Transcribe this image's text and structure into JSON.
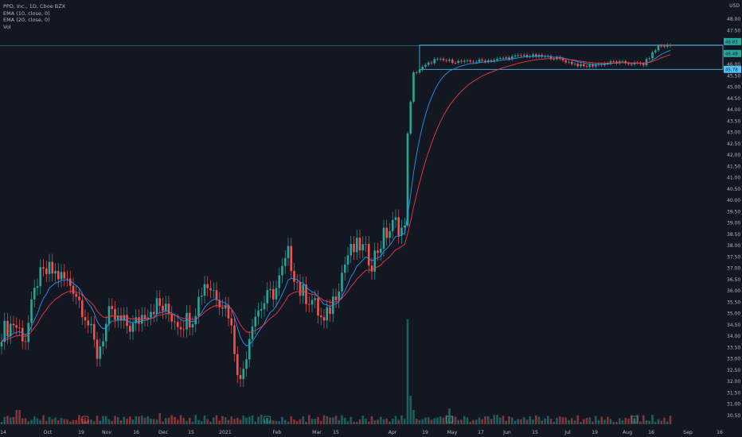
{
  "header": {
    "symbol_line": "PPD, Inc., 1D, Cboe BZX",
    "ema10": "EMA (10, close, 0)",
    "ema20": "EMA (20, close, 0)",
    "vol": "Vol",
    "currency": "USD"
  },
  "colors": {
    "background": "#131722",
    "up": "#26a69a",
    "down": "#ef5350",
    "ema10": "#2196f3",
    "ema20": "#f23645",
    "box": "#4fc3f7",
    "text": "#b2b5be"
  },
  "markers": [
    {
      "label": "E",
      "date_index": 28,
      "color": "#ef5350"
    },
    {
      "label": "E",
      "date_index": 89,
      "color": "#26a69a"
    },
    {
      "label": "E",
      "date_index": 150,
      "color": "#26a69a"
    },
    {
      "label": "E",
      "date_index": 212,
      "color": "#26a69a"
    }
  ],
  "chart_data": {
    "type": "candlestick",
    "title": "PPD, Inc., 1D, Cboe BZX",
    "ylabel": "USD",
    "ylim": [
      30.0,
      48.0
    ],
    "y_ticks": [
      "30.50",
      "31.00",
      "31.50",
      "32.00",
      "32.50",
      "33.00",
      "33.50",
      "34.00",
      "34.50",
      "35.00",
      "35.50",
      "36.00",
      "36.50",
      "37.00",
      "37.50",
      "38.00",
      "38.50",
      "39.00",
      "39.50",
      "40.00",
      "40.50",
      "41.00",
      "41.50",
      "42.00",
      "42.50",
      "43.00",
      "43.50",
      "44.00",
      "44.50",
      "45.00",
      "45.50",
      "46.00",
      "46.50",
      "47.00",
      "47.50",
      "48.00"
    ],
    "x_ticks": [
      "14",
      "Oct",
      "19",
      "Nov",
      "16",
      "Dec",
      "15",
      "2021",
      "Feb",
      "Mar",
      "15",
      "Apr",
      "19",
      "May",
      "17",
      "Jun",
      "15",
      "Jul",
      "19",
      "Aug",
      "16",
      "Sep",
      "16"
    ],
    "price_labels": [
      {
        "value": "46.83",
        "color": "#26a69a"
      },
      {
        "value": "46.48",
        "color": "#26a69a"
      },
      {
        "value": "45.78",
        "color": "#4fc3f7"
      }
    ],
    "range_box": {
      "top": 46.85,
      "bottom": 45.78,
      "from": "2021-04-19",
      "to": "2021-09-10"
    },
    "series": [
      {
        "name": "EMA (10, close, 0)",
        "color": "#2196f3"
      },
      {
        "name": "EMA (20, close, 0)",
        "color": "#f23645"
      },
      {
        "name": "Vol"
      }
    ],
    "close_path": [
      [
        0,
        34.2
      ],
      [
        4,
        34.6
      ],
      [
        8,
        33.9
      ],
      [
        12,
        36.5
      ],
      [
        16,
        36.9
      ],
      [
        20,
        36.6
      ],
      [
        24,
        36.2
      ],
      [
        28,
        35.0
      ],
      [
        32,
        33.2
      ],
      [
        36,
        34.9
      ],
      [
        40,
        34.6
      ],
      [
        44,
        34.4
      ],
      [
        48,
        35.1
      ],
      [
        52,
        35.4
      ],
      [
        56,
        35.0
      ],
      [
        60,
        34.6
      ],
      [
        64,
        34.9
      ],
      [
        68,
        36.4
      ],
      [
        72,
        35.9
      ],
      [
        76,
        35.1
      ],
      [
        80,
        31.9
      ],
      [
        84,
        34.8
      ],
      [
        88,
        35.5
      ],
      [
        92,
        36.1
      ],
      [
        96,
        37.6
      ],
      [
        100,
        36.0
      ],
      [
        104,
        35.6
      ],
      [
        108,
        34.5
      ],
      [
        112,
        36.0
      ],
      [
        116,
        37.6
      ],
      [
        120,
        38.0
      ],
      [
        124,
        37.3
      ],
      [
        128,
        38.4
      ],
      [
        132,
        39.0
      ],
      [
        135,
        38.6
      ],
      [
        136,
        43.0
      ],
      [
        138,
        45.6
      ],
      [
        145,
        46.2
      ],
      [
        155,
        46.1
      ],
      [
        165,
        46.2
      ],
      [
        175,
        46.4
      ],
      [
        185,
        46.3
      ],
      [
        195,
        45.9
      ],
      [
        205,
        46.1
      ],
      [
        215,
        46.0
      ],
      [
        220,
        46.8
      ],
      [
        224,
        46.83
      ]
    ],
    "volume_last": "Apr spike"
  }
}
